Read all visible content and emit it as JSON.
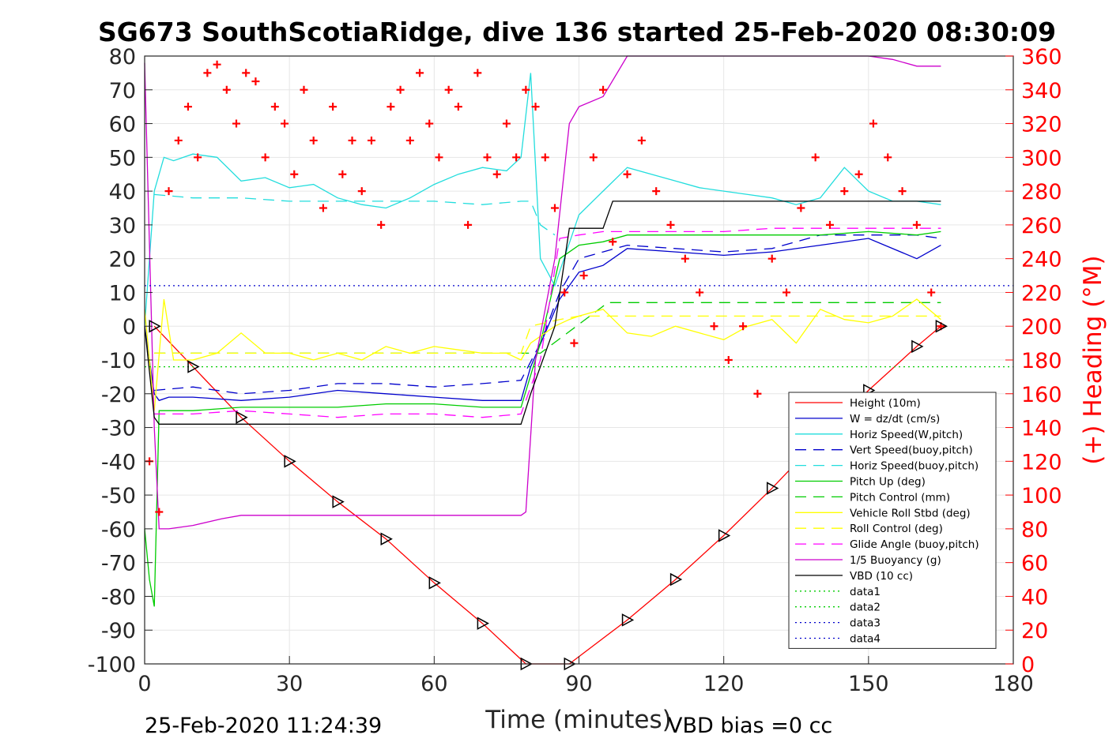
{
  "title": "SG673 SouthScotiaRidge, dive 136 started 25-Feb-2020 08:30:09",
  "footer": {
    "left": "25-Feb-2020 11:24:39",
    "right": "VBD bias =0 cc"
  },
  "chart_data": {
    "type": "line",
    "xlabel": "Time (minutes)",
    "ylabel": "",
    "y2label": "(+) Heading (°M)",
    "xlim": [
      0,
      180
    ],
    "ylim": [
      -100,
      80
    ],
    "y2lim": [
      0,
      360
    ],
    "xticks": [
      0,
      30,
      60,
      90,
      120,
      150,
      180
    ],
    "yticks": [
      80,
      70,
      60,
      50,
      40,
      30,
      20,
      10,
      0,
      -10,
      -20,
      -30,
      -40,
      -50,
      -60,
      -70,
      -80,
      -90,
      -100
    ],
    "y2ticks": [
      360,
      340,
      320,
      300,
      280,
      260,
      240,
      220,
      200,
      180,
      160,
      140,
      120,
      100,
      80,
      60,
      40,
      20,
      0
    ],
    "grid": true,
    "legend_position": "lower-right",
    "legend": [
      {
        "label": "Height (10m)",
        "color": "#ff0000",
        "dash": "solid"
      },
      {
        "label": "W = dz/dt (cm/s)",
        "color": "#0000cc",
        "dash": "solid"
      },
      {
        "label": "Horiz Speed(W,pitch)",
        "color": "#22dddd",
        "dash": "solid"
      },
      {
        "label": "Vert Speed(buoy,pitch)",
        "color": "#0000cc",
        "dash": "dashed"
      },
      {
        "label": "Horiz Speed(buoy,pitch)",
        "color": "#22dddd",
        "dash": "dashed"
      },
      {
        "label": "Pitch Up (deg)",
        "color": "#00cc00",
        "dash": "solid"
      },
      {
        "label": "Pitch Control (mm)",
        "color": "#00cc00",
        "dash": "dashed"
      },
      {
        "label": "Vehicle Roll Stbd (deg)",
        "color": "#ffff00",
        "dash": "solid"
      },
      {
        "label": "Roll Control (deg)",
        "color": "#ffff00",
        "dash": "dashed"
      },
      {
        "label": "Glide Angle (buoy,pitch)",
        "color": "#ff00ff",
        "dash": "dashed"
      },
      {
        "label": "1/5 Buoyancy (g)",
        "color": "#cc00cc",
        "dash": "solid"
      },
      {
        "label": "VBD (10 cc)",
        "color": "#000000",
        "dash": "solid"
      },
      {
        "label": "data1",
        "color": "#00cc00",
        "dash": "dotted"
      },
      {
        "label": "data2",
        "color": "#00cc00",
        "dash": "dotted"
      },
      {
        "label": "data3",
        "color": "#0000cc",
        "dash": "dotted"
      },
      {
        "label": "data4",
        "color": "#0000cc",
        "dash": "dotted"
      }
    ],
    "series": [
      {
        "name": "Height (10m)",
        "color": "#ff0000",
        "x": [
          2,
          10,
          20,
          30,
          40,
          50,
          60,
          70,
          79,
          88,
          100,
          110,
          120,
          130,
          140,
          150,
          160,
          165
        ],
        "y": [
          0,
          -12,
          -27,
          -40,
          -52,
          -63,
          -76,
          -88,
          -100,
          -100,
          -87,
          -75,
          -62,
          -48,
          -33,
          -19,
          -6,
          0
        ]
      },
      {
        "name": "W = dz/dt (cm/s)",
        "color": "#0000cc",
        "x": [
          0,
          1,
          2,
          3,
          5,
          10,
          20,
          30,
          40,
          50,
          60,
          70,
          78,
          80,
          83,
          86,
          90,
          95,
          100,
          110,
          120,
          130,
          140,
          150,
          160,
          165
        ],
        "y": [
          0,
          -10,
          -20,
          -22,
          -21,
          -21,
          -22,
          -21,
          -19,
          -20,
          -21,
          -22,
          -22,
          -12,
          -2,
          8,
          16,
          18,
          23,
          22,
          21,
          22,
          24,
          26,
          20,
          24
        ]
      },
      {
        "name": "Horiz Speed(W,pitch)",
        "color": "#22dddd",
        "x": [
          0,
          2,
          4,
          6,
          10,
          15,
          20,
          25,
          30,
          35,
          40,
          45,
          50,
          55,
          60,
          65,
          70,
          75,
          78,
          80,
          82,
          85,
          90,
          95,
          100,
          105,
          110,
          115,
          120,
          125,
          130,
          135,
          140,
          145,
          150,
          155,
          160,
          165
        ],
        "y": [
          0,
          40,
          50,
          49,
          51,
          50,
          43,
          44,
          41,
          42,
          38,
          36,
          35,
          38,
          42,
          45,
          47,
          46,
          50,
          75,
          20,
          12,
          33,
          40,
          47,
          45,
          43,
          41,
          40,
          39,
          38,
          36,
          38,
          47,
          40,
          37,
          37,
          36
        ]
      },
      {
        "name": "Vert Speed(buoy,pitch)",
        "color": "#0000cc",
        "x": [
          2,
          10,
          20,
          30,
          40,
          50,
          60,
          70,
          78,
          82,
          86,
          90,
          95,
          100,
          110,
          120,
          130,
          140,
          150,
          160,
          165
        ],
        "y": [
          -19,
          -18,
          -20,
          -19,
          -17,
          -17,
          -18,
          -17,
          -16,
          -5,
          10,
          20,
          22,
          24,
          23,
          22,
          23,
          27,
          27,
          27,
          26
        ]
      },
      {
        "name": "Horiz Speed(buoy,pitch)",
        "color": "#22dddd",
        "x": [
          2,
          10,
          20,
          30,
          40,
          50,
          60,
          70,
          78,
          80,
          82,
          85
        ],
        "y": [
          39,
          38,
          38,
          37,
          37,
          37,
          37,
          36,
          37,
          37,
          30,
          27
        ]
      },
      {
        "name": "Pitch Up (deg)",
        "color": "#00cc00",
        "x": [
          0,
          1,
          2,
          3,
          5,
          10,
          20,
          30,
          40,
          50,
          60,
          70,
          78,
          82,
          86,
          90,
          95,
          100,
          110,
          120,
          130,
          140,
          150,
          160,
          165
        ],
        "y": [
          -60,
          -75,
          -83,
          -25,
          -25,
          -25,
          -24,
          -24,
          -24,
          -23,
          -23,
          -24,
          -24,
          -5,
          20,
          24,
          25,
          27,
          27,
          27,
          27,
          27,
          28,
          27,
          28
        ]
      },
      {
        "name": "Pitch Control (mm)",
        "color": "#00cc00",
        "x": [
          2,
          80,
          82,
          96,
          97,
          165
        ],
        "y": [
          -8,
          -8,
          -8,
          7,
          7,
          7
        ]
      },
      {
        "name": "Vehicle Roll Stbd (deg)",
        "color": "#ffff00",
        "x": [
          0,
          2,
          4,
          6,
          10,
          15,
          20,
          25,
          30,
          35,
          40,
          45,
          50,
          55,
          60,
          65,
          70,
          75,
          78,
          80,
          85,
          88,
          90,
          95,
          100,
          105,
          110,
          115,
          120,
          125,
          130,
          135,
          140,
          145,
          150,
          155,
          160,
          165
        ],
        "y": [
          5,
          -25,
          8,
          -10,
          -10,
          -8,
          -2,
          -8,
          -8,
          -10,
          -8,
          -10,
          -6,
          -8,
          -6,
          -7,
          -8,
          -8,
          -10,
          -5,
          0,
          2,
          3,
          5,
          -2,
          -3,
          0,
          -2,
          -4,
          0,
          2,
          -5,
          5,
          2,
          1,
          3,
          8,
          2
        ]
      },
      {
        "name": "Roll Control (deg)",
        "color": "#ffff00",
        "x": [
          2,
          78,
          80,
          86,
          90,
          165
        ],
        "y": [
          -8,
          -8,
          0,
          2,
          3,
          3
        ]
      },
      {
        "name": "Glide Angle (buoy,pitch)",
        "color": "#ff00ff",
        "x": [
          2,
          10,
          20,
          30,
          40,
          50,
          60,
          70,
          78,
          82,
          86,
          90,
          95,
          100,
          110,
          120,
          130,
          140,
          150,
          160,
          165
        ],
        "y": [
          -26,
          -26,
          -25,
          -26,
          -27,
          -26,
          -26,
          -27,
          -26,
          -10,
          26,
          27,
          28,
          28,
          28,
          28,
          29,
          29,
          29,
          29,
          29
        ]
      },
      {
        "name": "1/5 Buoyancy (g)",
        "color": "#cc00cc",
        "x": [
          0,
          2,
          3,
          5,
          10,
          16,
          20,
          30,
          40,
          50,
          60,
          70,
          78,
          79,
          81,
          85,
          88,
          90,
          95,
          100,
          110,
          120,
          130,
          140,
          150,
          155,
          160,
          165
        ],
        "y": [
          78,
          -30,
          -60,
          -60,
          -59,
          -57,
          -56,
          -56,
          -56,
          -56,
          -56,
          -56,
          -56,
          -55,
          -10,
          20,
          60,
          65,
          68,
          80,
          80,
          80,
          80,
          80,
          80,
          79,
          77,
          77
        ]
      },
      {
        "name": "VBD (10 cc)",
        "color": "#000000",
        "x": [
          0,
          2,
          3,
          5,
          20,
          40,
          60,
          78,
          80,
          85,
          88,
          91,
          95,
          97,
          165
        ],
        "y": [
          0,
          -27,
          -29,
          -29,
          -29,
          -29,
          -29,
          -29,
          -20,
          0,
          29,
          29,
          29,
          37,
          37
        ]
      },
      {
        "name": "data1",
        "color": "#00cc00",
        "x": [
          0,
          180
        ],
        "y": [
          -12,
          -12
        ]
      },
      {
        "name": "data3",
        "color": "#0000cc",
        "x": [
          0,
          180
        ],
        "y": [
          12,
          12
        ]
      },
      {
        "name": "Heading (+)",
        "color": "#ff0000",
        "axis": "right",
        "x": [
          1,
          3,
          5,
          7,
          9,
          11,
          13,
          15,
          17,
          19,
          21,
          23,
          25,
          27,
          29,
          31,
          33,
          35,
          37,
          39,
          41,
          43,
          45,
          47,
          49,
          51,
          53,
          55,
          57,
          59,
          61,
          63,
          65,
          67,
          69,
          71,
          73,
          75,
          77,
          79,
          81,
          83,
          85,
          87,
          89,
          91,
          93,
          95,
          97,
          100,
          103,
          106,
          109,
          112,
          115,
          118,
          121,
          124,
          127,
          130,
          133,
          136,
          139,
          142,
          145,
          148,
          151,
          154,
          157,
          160,
          163,
          165
        ],
        "y": [
          120,
          90,
          280,
          310,
          330,
          300,
          350,
          355,
          340,
          320,
          350,
          345,
          300,
          330,
          320,
          290,
          340,
          310,
          270,
          330,
          290,
          310,
          280,
          310,
          260,
          330,
          340,
          310,
          350,
          320,
          300,
          340,
          330,
          260,
          350,
          300,
          290,
          320,
          300,
          340,
          330,
          300,
          270,
          220,
          190,
          230,
          300,
          340,
          250,
          290,
          310,
          280,
          260,
          240,
          220,
          200,
          180,
          200,
          160,
          240,
          220,
          270,
          300,
          260,
          280,
          290,
          320,
          300,
          280,
          260,
          220,
          200
        ]
      }
    ]
  }
}
